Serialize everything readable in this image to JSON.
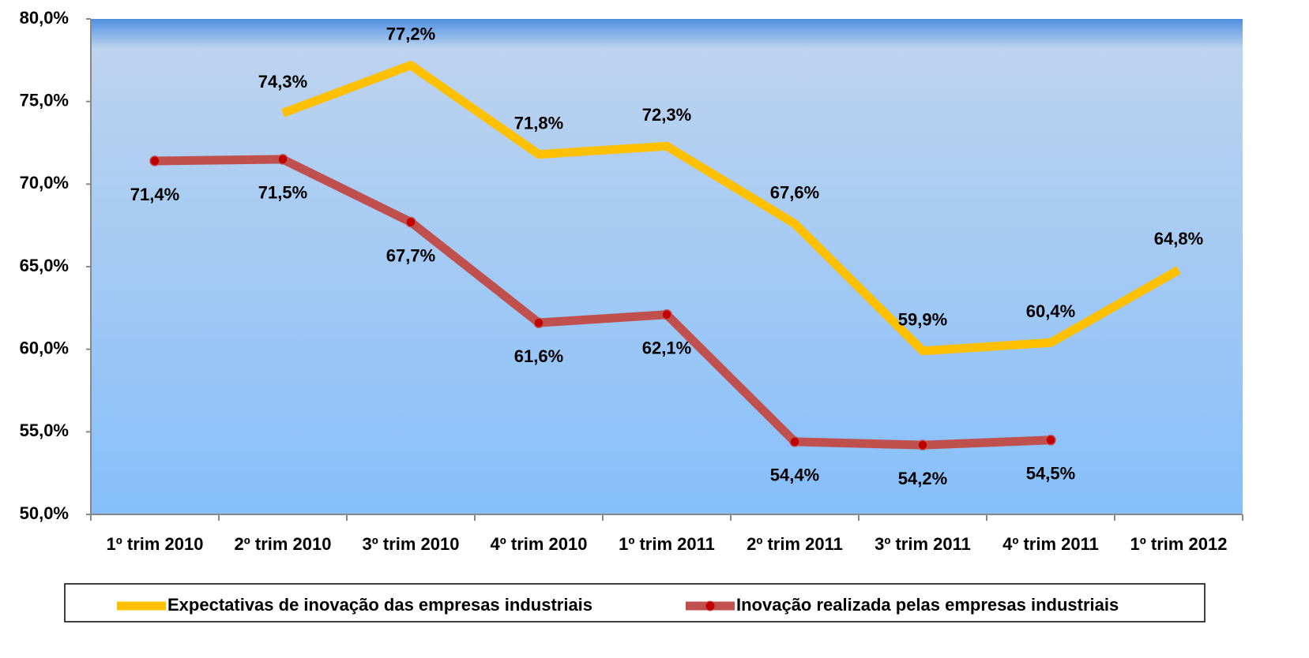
{
  "chart_data": {
    "type": "line",
    "categories": [
      "1º trim 2010",
      "2º trim 2010",
      "3º trim 2010",
      "4º trim 2010",
      "1º trim 2011",
      "2º trim 2011",
      "3º trim 2011",
      "4º trim 2011",
      "1º trim 2012"
    ],
    "series": [
      {
        "name": "Expectativas de inovação das empresas industriais",
        "color": "#FFC000",
        "values": [
          null,
          74.3,
          77.2,
          71.8,
          72.3,
          67.6,
          59.9,
          60.4,
          64.8
        ],
        "value_labels": [
          null,
          "74,3%",
          "77,2%",
          "71,8%",
          "72,3%",
          "67,6%",
          "59,9%",
          "60,4%",
          "64,8%"
        ]
      },
      {
        "name": "Inovação realizada pelas empresas industriais",
        "color": "#C0504D",
        "marker_color": "#C00000",
        "values": [
          71.4,
          71.5,
          67.7,
          61.6,
          62.1,
          54.4,
          54.2,
          54.5,
          null
        ],
        "value_labels": [
          "71,4%",
          "71,5%",
          "67,7%",
          "61,6%",
          "62,1%",
          "54,4%",
          "54,2%",
          "54,5%",
          null
        ]
      }
    ],
    "ylim": [
      50,
      80
    ],
    "yticks": [
      {
        "value": 50,
        "label": "50,0%"
      },
      {
        "value": 55,
        "label": "55,0%"
      },
      {
        "value": 60,
        "label": "60,0%"
      },
      {
        "value": 65,
        "label": "65,0%"
      },
      {
        "value": 70,
        "label": "70,0%"
      },
      {
        "value": 75,
        "label": "75,0%"
      },
      {
        "value": 80,
        "label": "80,0%"
      }
    ],
    "legend": "bottom"
  }
}
